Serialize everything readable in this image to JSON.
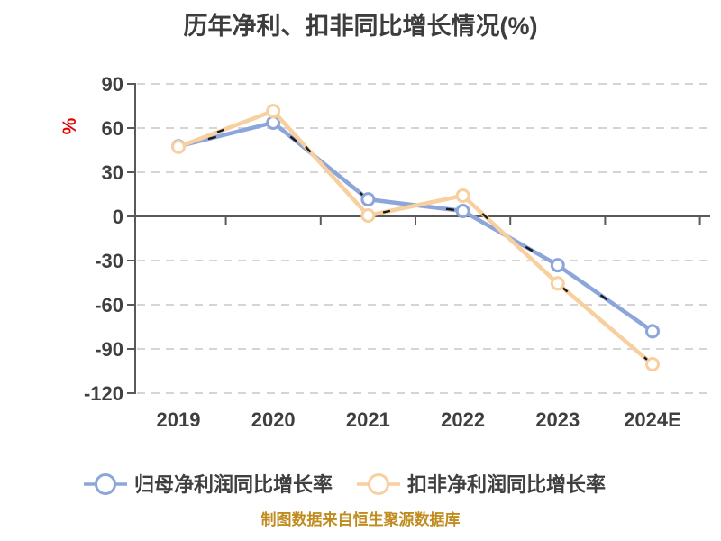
{
  "title": "历年净利、扣非同比增长情况(%)",
  "y_axis_unit": "%",
  "source_note": "制图数据来自恒生聚源数据库",
  "legend": [
    {
      "label": "归母净利润同比增长率",
      "color": "#8ca6db"
    },
    {
      "label": "扣非净利润同比增长率",
      "color": "#f8cf9e"
    }
  ],
  "colors": {
    "series_blue": "#8ca6db",
    "series_orange": "#f8cf9e",
    "marker_fill": "#ffffff",
    "accent_dash": "#1a1a1a",
    "axis": "#595959",
    "gridline": "#d5d5d5",
    "text": "#3f3f3f",
    "unit_red": "#e60000",
    "source_gold": "#c08c1f",
    "background": "#ffffff"
  },
  "chart_data": {
    "type": "line",
    "title": "历年净利、扣非同比增长情况(%)",
    "xlabel": "",
    "ylabel": "%",
    "categories": [
      "2019",
      "2020",
      "2021",
      "2022",
      "2023",
      "2024E"
    ],
    "series": [
      {
        "name": "归母净利润同比增长率",
        "color": "#8ca6db",
        "values": [
          47.6,
          63.7,
          11.6,
          3.7,
          -33.1,
          -78.0
        ]
      },
      {
        "name": "扣非净利润同比增长率",
        "color": "#f8cf9e",
        "values": [
          47.2,
          71.6,
          0.6,
          14.1,
          -45.5,
          -100.4
        ]
      }
    ],
    "ylim": [
      -120,
      90
    ],
    "yticks": [
      90,
      60,
      30,
      0,
      -30,
      -60,
      -90,
      -120
    ],
    "grid": "horizontal-dashed",
    "marker": "circle-white-fill",
    "legend_position": "bottom"
  }
}
